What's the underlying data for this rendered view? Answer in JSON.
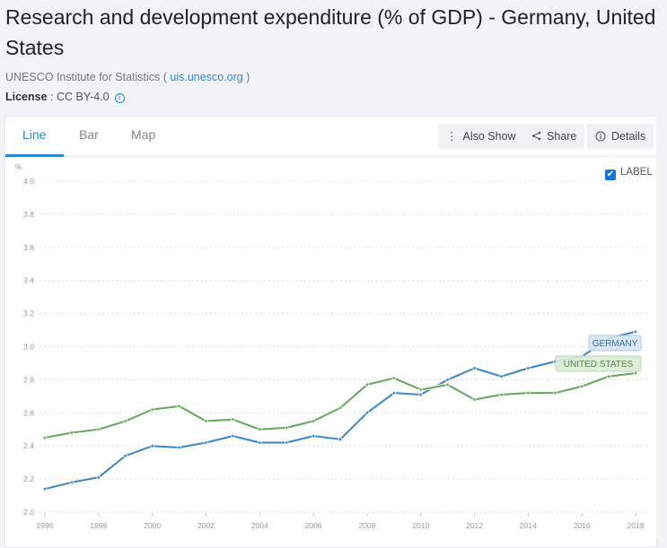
{
  "page": {
    "title": "Research and development expenditure (% of GDP) - Germany, United States",
    "source_prefix": "UNESCO Institute for Statistics ( ",
    "source_link": "uis.unesco.org",
    "source_suffix": " )",
    "license_label": "License",
    "license_value": " : CC BY-4.0"
  },
  "tabs": [
    {
      "label": "Line",
      "active": true
    },
    {
      "label": "Bar",
      "active": false
    },
    {
      "label": "Map",
      "active": false
    }
  ],
  "toolbar": {
    "also_show": "Also Show",
    "share": "Share",
    "details": "Details"
  },
  "label_toggle": {
    "label": "LABEL",
    "checked": true
  },
  "colors": {
    "germany": "#3a86c4",
    "united_states": "#63a85a",
    "accent": "#2b8ad6"
  },
  "chart_data": {
    "type": "line",
    "title": "Research and development expenditure (% of GDP) - Germany, United States",
    "xlabel": "",
    "ylabel": "%",
    "ylim": [
      2.0,
      4.0
    ],
    "yticks": [
      "2.0",
      "2.2",
      "2.4",
      "2.6",
      "2.8",
      "3.0",
      "3.2",
      "3.4",
      "3.6",
      "3.8",
      "4.0"
    ],
    "xticks": [
      "1996",
      "1998",
      "2000",
      "2002",
      "2004",
      "2006",
      "2008",
      "2010",
      "2012",
      "2014",
      "2016",
      "2018"
    ],
    "grid": true,
    "legend": "inline labels at line ends",
    "x": [
      1996,
      1997,
      1998,
      1999,
      2000,
      2001,
      2002,
      2003,
      2004,
      2005,
      2006,
      2007,
      2008,
      2009,
      2010,
      2011,
      2012,
      2013,
      2014,
      2015,
      2016,
      2017,
      2018
    ],
    "series": [
      {
        "name": "GERMANY",
        "values": [
          2.14,
          2.18,
          2.21,
          2.34,
          2.4,
          2.39,
          2.42,
          2.46,
          2.42,
          2.42,
          2.46,
          2.44,
          2.6,
          2.72,
          2.71,
          2.8,
          2.87,
          2.82,
          2.87,
          2.91,
          2.94,
          3.05,
          3.09
        ]
      },
      {
        "name": "UNITED STATES",
        "values": [
          2.45,
          2.48,
          2.5,
          2.55,
          2.62,
          2.64,
          2.55,
          2.56,
          2.5,
          2.51,
          2.55,
          2.63,
          2.77,
          2.81,
          2.74,
          2.77,
          2.68,
          2.71,
          2.72,
          2.72,
          2.76,
          2.82,
          2.84
        ]
      }
    ]
  }
}
